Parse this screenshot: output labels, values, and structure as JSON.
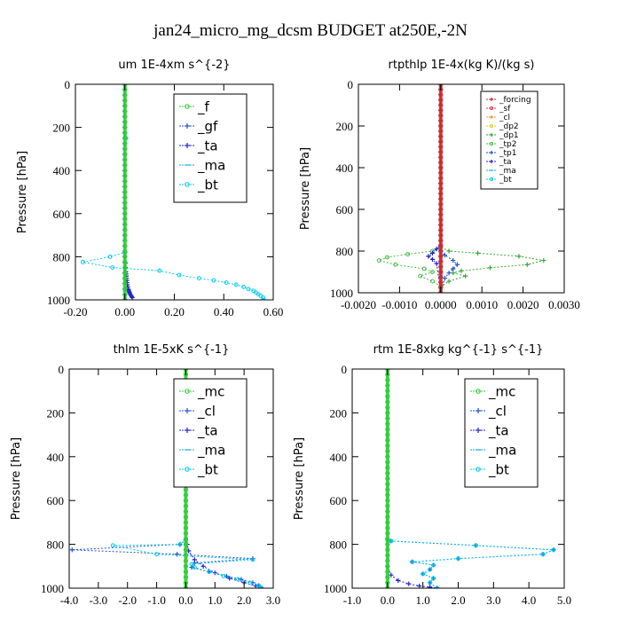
{
  "figure_title": "jan24_micro_mg_dcsm  BUDGET at250E,-2N",
  "chart_data": [
    {
      "type": "line",
      "title": "um   1E-4xm s^{-2}",
      "ylabel": "Pressure [hPa]",
      "xlim": [
        -0.2,
        0.6
      ],
      "xticks": [
        "-0.20",
        "0.00",
        "0.20",
        "0.40",
        "0.60"
      ],
      "xtick_values": [
        -0.2,
        0.0,
        0.2,
        0.4,
        0.6
      ],
      "ylim": [
        1000,
        0
      ],
      "yticks": [
        "0",
        "200",
        "400",
        "600",
        "800",
        "1000"
      ],
      "ytick_values": [
        0,
        200,
        400,
        600,
        800,
        1000
      ],
      "legend": {
        "position": "top-right",
        "size": "large"
      },
      "series": [
        {
          "name": "_f",
          "color": "#33cc33",
          "marker": "circle",
          "style": "dotted",
          "x": [
            0,
            0
          ],
          "y": [
            0,
            1000
          ]
        },
        {
          "name": "_gf",
          "color": "#2255cc",
          "marker": "plus",
          "style": "dotted",
          "x": [
            0,
            0
          ],
          "y": [
            0,
            1000
          ]
        },
        {
          "name": "_ta",
          "color": "#2222cc",
          "marker": "plus",
          "style": "dotted",
          "x": [
            0,
            0,
            0,
            0.002,
            0.003,
            0.004,
            0.005,
            0.006,
            0.007,
            0.008,
            0.009,
            0.01,
            0.012,
            0.014,
            0.015,
            0.017,
            0.018,
            0.02,
            0.022,
            0.025,
            0.028,
            0.03
          ],
          "y": [
            0,
            780,
            800,
            830,
            850,
            870,
            880,
            890,
            900,
            910,
            920,
            930,
            940,
            950,
            955,
            960,
            965,
            970,
            975,
            980,
            985,
            990
          ]
        },
        {
          "name": "_ma",
          "color": "#11aadd",
          "marker": "dash",
          "style": "dotted",
          "x": [
            0,
            0
          ],
          "y": [
            0,
            1000
          ]
        },
        {
          "name": "_bt",
          "color": "#00ccee",
          "marker": "circle",
          "style": "dotted",
          "x": [
            0.0,
            0.005,
            0.0,
            0.0,
            -0.06,
            -0.17,
            -0.05,
            0.14,
            0.22,
            0.3,
            0.36,
            0.41,
            0.45,
            0.48,
            0.5,
            0.52,
            0.53,
            0.54,
            0.55,
            0.56,
            0.56
          ],
          "y": [
            0,
            250,
            500,
            780,
            800,
            825,
            850,
            865,
            885,
            900,
            910,
            920,
            930,
            940,
            950,
            958,
            966,
            974,
            982,
            990,
            1000
          ]
        },
        {
          "name": "_f",
          "color": "#33cc33",
          "marker": "circle",
          "style": "solid",
          "x": [
            0,
            0
          ],
          "y": [
            0,
            1000
          ]
        }
      ]
    },
    {
      "type": "line",
      "title": "rtpthlp   1E-4x(kg K)/(kg s)",
      "ylabel": "Pressure [hPa]",
      "xlim": [
        -0.002,
        0.003
      ],
      "xticks": [
        "-0.0020",
        "-0.0010",
        "0.0000",
        "0.0010",
        "0.0020",
        "0.0030"
      ],
      "xtick_values": [
        -0.002,
        -0.001,
        0.0,
        0.001,
        0.002,
        0.003
      ],
      "ylim": [
        1000,
        0
      ],
      "yticks": [
        "0",
        "200",
        "400",
        "600",
        "800",
        "1000"
      ],
      "ytick_values": [
        0,
        200,
        400,
        600,
        800,
        1000
      ],
      "legend": {
        "position": "top-right",
        "size": "small"
      },
      "series": [
        {
          "name": "_forcing",
          "color": "#dd2222",
          "marker": "plus",
          "style": "dotted",
          "x": [
            0,
            0
          ],
          "y": [
            0,
            1000
          ]
        },
        {
          "name": "_sf",
          "color": "#dd3344",
          "marker": "circle",
          "style": "dotted",
          "x": [
            0,
            0
          ],
          "y": [
            0,
            1000
          ]
        },
        {
          "name": "_cl",
          "color": "#ee9922",
          "marker": "plus",
          "style": "dotted",
          "x": [
            0,
            0
          ],
          "y": [
            0,
            1000
          ]
        },
        {
          "name": "_dp2",
          "color": "#ddcc22",
          "marker": "circle",
          "style": "dotted",
          "x": [
            0,
            0
          ],
          "y": [
            0,
            1000
          ]
        },
        {
          "name": "_dp1",
          "color": "#33aa33",
          "marker": "plus",
          "style": "dotted",
          "x": [
            0,
            0,
            0.0002,
            0.0009,
            0.0019,
            0.0025,
            0.0021,
            0.0012,
            0.0005,
            0.0003,
            0.0006,
            0.0002,
            0,
            0
          ],
          "y": [
            0,
            780,
            800,
            810,
            825,
            845,
            865,
            880,
            895,
            905,
            920,
            945,
            970,
            1000
          ]
        },
        {
          "name": "_tp2",
          "color": "#44bb44",
          "marker": "circle",
          "style": "dotted",
          "x": [
            0,
            0,
            -0.0002,
            -0.0008,
            -0.0013,
            -0.0015,
            -0.0011,
            -0.0004,
            -0.0002,
            -0.0005,
            -0.0002,
            0,
            0
          ],
          "y": [
            0,
            780,
            800,
            815,
            830,
            845,
            865,
            885,
            900,
            920,
            945,
            970,
            1000
          ]
        },
        {
          "name": "_tp1",
          "color": "#2255cc",
          "marker": "plus",
          "style": "dotted",
          "x": [
            0,
            0,
            0.0001,
            0.0003,
            0.0004,
            0.0003,
            0.0002,
            0.0001,
            0
          ],
          "y": [
            0,
            800,
            820,
            845,
            865,
            885,
            905,
            930,
            1000
          ]
        },
        {
          "name": "_ta",
          "color": "#2222cc",
          "marker": "plus",
          "style": "dotted",
          "x": [
            0,
            0,
            -0.0001,
            -0.0002,
            -0.0003,
            -0.0002,
            -0.0001,
            0
          ],
          "y": [
            0,
            770,
            790,
            810,
            825,
            840,
            860,
            1000
          ]
        },
        {
          "name": "_ma",
          "color": "#11aadd",
          "marker": "dash",
          "style": "dotted",
          "x": [
            0,
            0
          ],
          "y": [
            0,
            1000
          ]
        },
        {
          "name": "_bt",
          "color": "#00ccee",
          "marker": "circle",
          "style": "dotted",
          "x": [
            0,
            0
          ],
          "y": [
            0,
            1000
          ]
        },
        {
          "name": "_forcing",
          "color": "#dd2222",
          "marker": "plus",
          "style": "solid",
          "x": [
            0,
            0
          ],
          "y": [
            0,
            1000
          ]
        }
      ]
    },
    {
      "type": "line",
      "title": "thlm   1E-5xK  s^{-1}",
      "ylabel": "Pressure [hPa]",
      "xlim": [
        -4.0,
        3.0
      ],
      "xticks": [
        "-4.0",
        "-3.0",
        "-2.0",
        "-1.0",
        "0.0",
        "1.0",
        "2.0",
        "3.0"
      ],
      "xtick_values": [
        -4,
        -3,
        -2,
        -1,
        0,
        1,
        2,
        3
      ],
      "ylim": [
        1000,
        0
      ],
      "yticks": [
        "0",
        "200",
        "400",
        "600",
        "800",
        "1000"
      ],
      "ytick_values": [
        0,
        200,
        400,
        600,
        800,
        1000
      ],
      "legend": {
        "position": "top-right",
        "size": "large"
      },
      "series": [
        {
          "name": "_mc",
          "color": "#33cc33",
          "marker": "circle",
          "style": "dotted",
          "x": [
            0,
            0
          ],
          "y": [
            0,
            1000
          ]
        },
        {
          "name": "_cl",
          "color": "#2255cc",
          "marker": "plus",
          "style": "dotted",
          "x": [
            0,
            0,
            -0.2,
            -3.9,
            -0.3,
            2.3,
            0.3,
            0.2,
            0.8,
            1.4,
            1.9,
            2.3,
            2.5,
            2.6
          ],
          "y": [
            0,
            780,
            800,
            825,
            845,
            865,
            885,
            905,
            925,
            945,
            960,
            975,
            988,
            1000
          ]
        },
        {
          "name": "_ta",
          "color": "#2222cc",
          "marker": "plus",
          "style": "dotted",
          "x": [
            0,
            0,
            0.05,
            0.1,
            0.3,
            0.6,
            1.0,
            1.5,
            2.0,
            2.4,
            2.6
          ],
          "y": [
            0,
            780,
            800,
            830,
            870,
            900,
            930,
            955,
            975,
            990,
            1000
          ]
        },
        {
          "name": "_ma",
          "color": "#11aadd",
          "marker": "dash",
          "style": "dotted",
          "x": [
            0,
            0
          ],
          "y": [
            0,
            1000
          ]
        },
        {
          "name": "_bt",
          "color": "#00ccee",
          "marker": "circle",
          "style": "dotted",
          "x": [
            0,
            0,
            -0.2,
            -2.5,
            -1.0,
            2.3,
            0.2,
            0.3,
            0.8,
            1.3,
            1.8,
            2.2,
            2.5,
            2.6
          ],
          "y": [
            0,
            780,
            800,
            805,
            845,
            870,
            890,
            905,
            925,
            945,
            960,
            975,
            988,
            1000
          ]
        },
        {
          "name": "_mc",
          "color": "#33cc33",
          "marker": "circle",
          "style": "solid",
          "x": [
            0,
            0
          ],
          "y": [
            0,
            1000
          ]
        }
      ]
    },
    {
      "type": "line",
      "title": "rtm   1E-8xkg kg^{-1} s^{-1}",
      "ylabel": "Pressure [hPa]",
      "xlim": [
        -1.0,
        5.0
      ],
      "xticks": [
        "-1.0",
        "0.0",
        "1.0",
        "2.0",
        "3.0",
        "4.0",
        "5.0"
      ],
      "xtick_values": [
        -1,
        0,
        1,
        2,
        3,
        4,
        5
      ],
      "ylim": [
        1000,
        0
      ],
      "yticks": [
        "0",
        "200",
        "400",
        "600",
        "800",
        "1000"
      ],
      "ytick_values": [
        0,
        200,
        400,
        600,
        800,
        1000
      ],
      "legend": {
        "position": "top-right",
        "size": "large"
      },
      "series": [
        {
          "name": "_mc",
          "color": "#33cc33",
          "marker": "circle",
          "style": "dotted",
          "x": [
            0,
            0
          ],
          "y": [
            0,
            1000
          ]
        },
        {
          "name": "_cl",
          "color": "#2255cc",
          "marker": "plus",
          "style": "dotted",
          "x": [
            0,
            0,
            0.1,
            2.5,
            4.7,
            4.4,
            2.0,
            0.7,
            1.3,
            1.2,
            1.0,
            1.3,
            1.2,
            1.4
          ],
          "y": [
            0,
            780,
            785,
            805,
            825,
            845,
            865,
            880,
            895,
            915,
            935,
            955,
            975,
            1000
          ]
        },
        {
          "name": "_ta",
          "color": "#2222cc",
          "marker": "plus",
          "style": "dotted",
          "x": [
            0,
            0,
            0.1,
            0.3,
            0.6,
            0.9,
            1.2,
            1.4
          ],
          "y": [
            0,
            900,
            940,
            965,
            980,
            990,
            995,
            1000
          ]
        },
        {
          "name": "_ma",
          "color": "#11aadd",
          "marker": "dash",
          "style": "dotted",
          "x": [
            0,
            0
          ],
          "y": [
            0,
            1000
          ]
        },
        {
          "name": "_bt",
          "color": "#00ccee",
          "marker": "circle",
          "style": "dotted",
          "x": [
            0,
            0,
            0.1,
            2.5,
            4.7,
            4.4,
            2.0,
            0.7,
            1.3,
            1.2,
            1.0,
            1.3,
            1.2,
            1.4
          ],
          "y": [
            0,
            780,
            785,
            805,
            825,
            845,
            865,
            880,
            895,
            915,
            935,
            955,
            975,
            1000
          ]
        },
        {
          "name": "_mc",
          "color": "#33cc33",
          "marker": "circle",
          "style": "solid",
          "x": [
            0,
            0
          ],
          "y": [
            0,
            1000
          ]
        }
      ]
    }
  ]
}
